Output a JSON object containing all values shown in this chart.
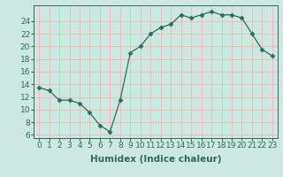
{
  "x": [
    0,
    1,
    2,
    3,
    4,
    5,
    6,
    7,
    8,
    9,
    10,
    11,
    12,
    13,
    14,
    15,
    16,
    17,
    18,
    19,
    20,
    21,
    22,
    23
  ],
  "y": [
    13.5,
    13.0,
    11.5,
    11.5,
    11.0,
    9.5,
    7.5,
    6.5,
    11.5,
    19.0,
    20.0,
    22.0,
    23.0,
    23.5,
    25.0,
    24.5,
    25.0,
    25.5,
    25.0,
    25.0,
    24.5,
    22.0,
    19.5,
    18.5
  ],
  "xlabel": "Humidex (Indice chaleur)",
  "ylabel": "",
  "xlim": [
    -0.5,
    23.5
  ],
  "ylim": [
    5.5,
    26.5
  ],
  "yticks": [
    6,
    8,
    10,
    12,
    14,
    16,
    18,
    20,
    22,
    24
  ],
  "xticks": [
    0,
    1,
    2,
    3,
    4,
    5,
    6,
    7,
    8,
    9,
    10,
    11,
    12,
    13,
    14,
    15,
    16,
    17,
    18,
    19,
    20,
    21,
    22,
    23
  ],
  "line_color": "#2e6b5e",
  "marker": "D",
  "marker_size": 2.5,
  "bg_color": "#cce8e0",
  "grid_color": "#b0d4cc",
  "xlabel_fontsize": 7.5,
  "tick_fontsize": 6.5
}
